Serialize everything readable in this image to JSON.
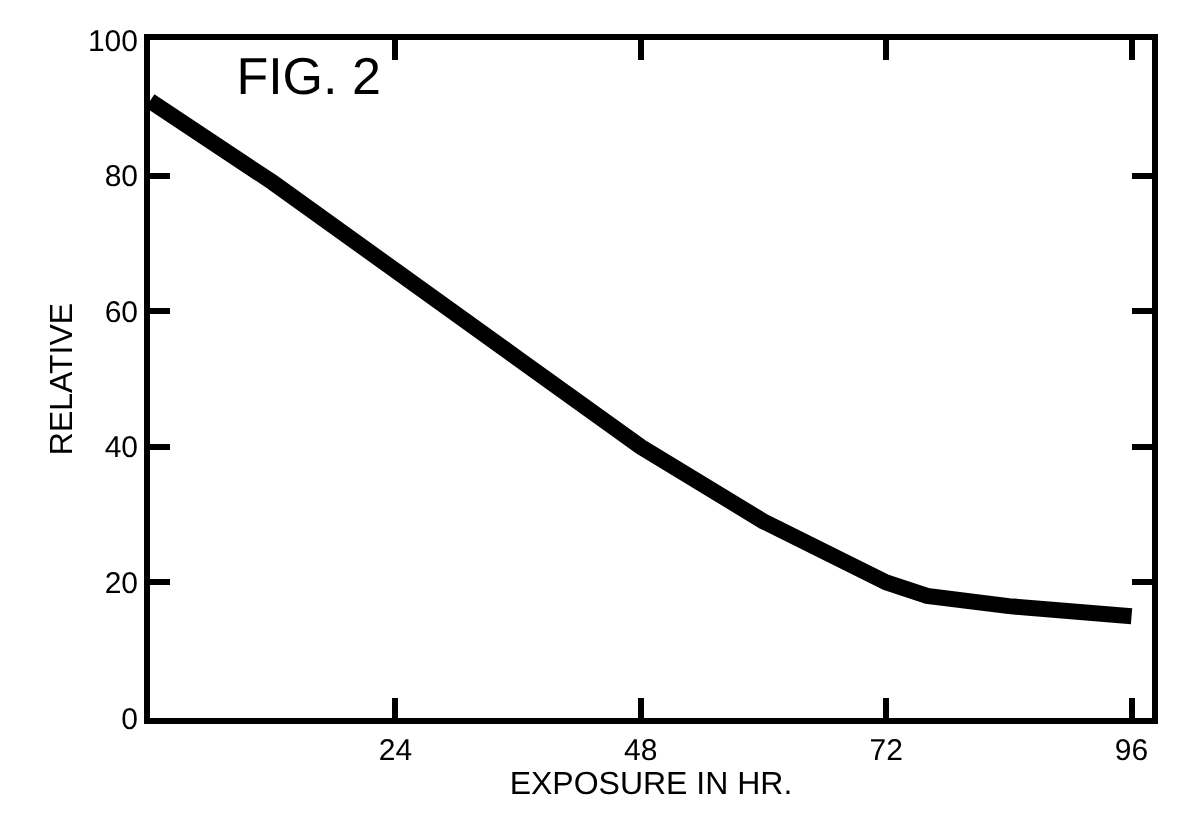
{
  "chart_data": {
    "type": "line",
    "title": "FIG. 2",
    "xlabel": "EXPOSURE IN HR.",
    "ylabel": "RELATIVE",
    "x": [
      0,
      12,
      24,
      36,
      48,
      60,
      72,
      76,
      84,
      96
    ],
    "series": [
      {
        "color": "#000000",
        "values": [
          91,
          79,
          66,
          53,
          40,
          29,
          20,
          18,
          16.5,
          15
        ]
      }
    ],
    "xlim": [
      0,
      98
    ],
    "xticks": [
      24,
      48,
      72,
      96
    ],
    "ylim": [
      0,
      100
    ],
    "yticks": [
      0,
      20,
      40,
      60,
      80,
      100
    ],
    "marker": "none",
    "line_style": "solid"
  }
}
